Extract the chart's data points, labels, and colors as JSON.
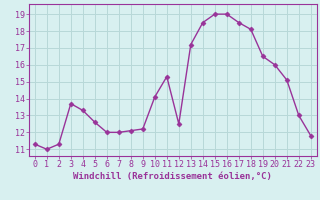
{
  "x": [
    0,
    1,
    2,
    3,
    4,
    5,
    6,
    7,
    8,
    9,
    10,
    11,
    12,
    13,
    14,
    15,
    16,
    17,
    18,
    19,
    20,
    21,
    22,
    23
  ],
  "y": [
    11.3,
    11.0,
    11.3,
    13.7,
    13.3,
    12.6,
    12.0,
    12.0,
    12.1,
    12.2,
    14.1,
    15.3,
    12.5,
    17.2,
    18.5,
    19.0,
    19.0,
    18.5,
    18.1,
    16.5,
    16.0,
    15.1,
    13.0,
    11.8
  ],
  "line_color": "#993399",
  "marker": "D",
  "marker_size": 2.5,
  "linewidth": 1.0,
  "xlabel": "Windchill (Refroidissement éolien,°C)",
  "xlabel_fontsize": 6.5,
  "yticks": [
    11,
    12,
    13,
    14,
    15,
    16,
    17,
    18,
    19
  ],
  "xlim": [
    -0.5,
    23.5
  ],
  "ylim": [
    10.6,
    19.6
  ],
  "bg_color": "#d8f0f0",
  "grid_color": "#b8d8d8",
  "tick_color": "#993399",
  "tick_fontsize": 6.0
}
